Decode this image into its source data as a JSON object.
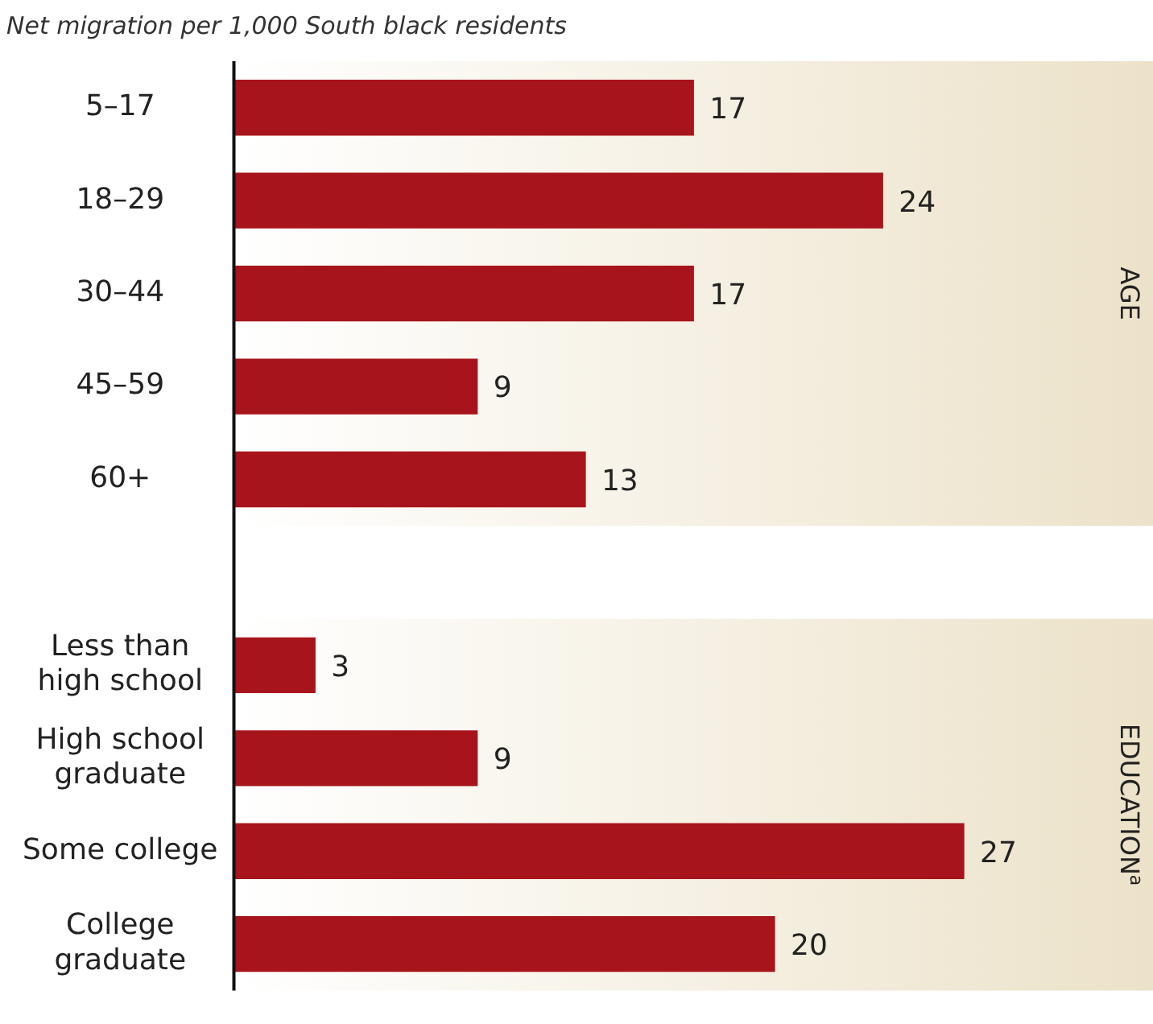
{
  "chart_data": {
    "type": "bar",
    "orientation": "horizontal",
    "title": "Net migration per 1,000 South black residents",
    "categories": [
      "5–17",
      "18–29",
      "30–44",
      "45–59",
      "60+",
      null,
      "Less than high school",
      "High school graduate",
      "Some college",
      "College graduate"
    ],
    "values": [
      17,
      24,
      17,
      9,
      13,
      null,
      3,
      9,
      27,
      20
    ],
    "color": "#a8141b",
    "data_labels": true,
    "xlim": [
      0,
      34
    ],
    "tick_labels": "y",
    "grid": false,
    "legend": false,
    "bands": [
      {
        "axis": "y",
        "from": "5–17",
        "to": "60+",
        "label": "AGE",
        "color": "#ece2c9"
      },
      {
        "axis": "y",
        "from": "Less than high school",
        "to": "College graduate",
        "label": "EDUCATION$^{a}$",
        "color": "#ece2c9"
      }
    ]
  }
}
